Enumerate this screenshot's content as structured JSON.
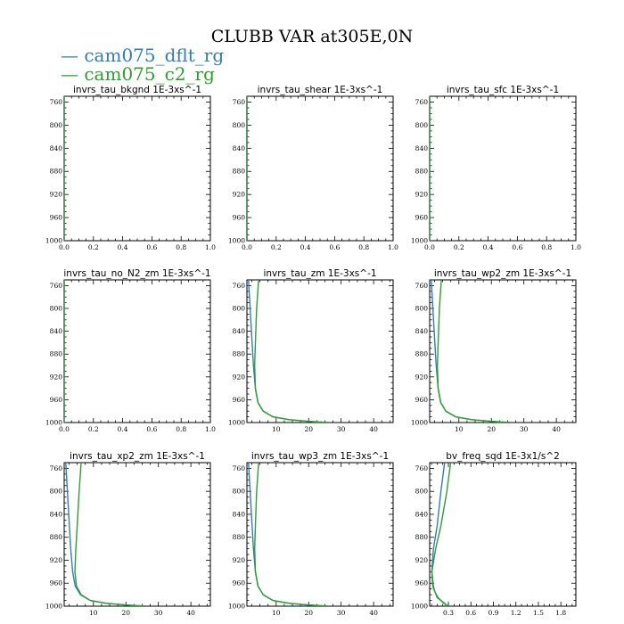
{
  "figure": {
    "title": "CLUBB VAR at305E,0N"
  },
  "legend": [
    {
      "label": "cam075_dflt_rg",
      "color": "#2f7dbf"
    },
    {
      "label": "cam075_c2_rg",
      "color": "#2ca02c"
    }
  ],
  "chart_data": [
    {
      "type": "line",
      "title": "invrs_tau_bkgnd   1E-3xs^-1",
      "xlim": [
        0,
        1
      ],
      "ylim": [
        1000,
        750
      ],
      "xticks": [
        0.0,
        0.2,
        0.4,
        0.6,
        0.8,
        1.0
      ],
      "xtick_labels": [
        "0.0",
        "0.2",
        "0.4",
        "0.6",
        "0.8",
        "1.0"
      ],
      "yticks": [
        760,
        800,
        840,
        880,
        920,
        960,
        1000
      ],
      "series": [
        {
          "name": "cam075_dflt_rg",
          "x": [
            0,
            0
          ],
          "y": [
            750,
            1000
          ]
        },
        {
          "name": "cam075_c2_rg",
          "x": [
            0,
            0
          ],
          "y": [
            750,
            1000
          ]
        }
      ]
    },
    {
      "type": "line",
      "title": "invrs_tau_shear   1E-3xs^-1",
      "xlim": [
        0,
        1
      ],
      "ylim": [
        1000,
        750
      ],
      "xticks": [
        0.0,
        0.2,
        0.4,
        0.6,
        0.8,
        1.0
      ],
      "xtick_labels": [
        "0.0",
        "0.2",
        "0.4",
        "0.6",
        "0.8",
        "1.0"
      ],
      "yticks": [
        760,
        800,
        840,
        880,
        920,
        960,
        1000
      ],
      "series": [
        {
          "name": "cam075_dflt_rg",
          "x": [
            0,
            0
          ],
          "y": [
            750,
            1000
          ]
        },
        {
          "name": "cam075_c2_rg",
          "x": [
            0,
            0
          ],
          "y": [
            750,
            1000
          ]
        }
      ]
    },
    {
      "type": "line",
      "title": "invrs_tau_sfc   1E-3xs^-1",
      "xlim": [
        0,
        1
      ],
      "ylim": [
        1000,
        750
      ],
      "xticks": [
        0.0,
        0.2,
        0.4,
        0.6,
        0.8,
        1.0
      ],
      "xtick_labels": [
        "0.0",
        "0.2",
        "0.4",
        "0.6",
        "0.8",
        "1.0"
      ],
      "yticks": [
        760,
        800,
        840,
        880,
        920,
        960,
        1000
      ],
      "series": [
        {
          "name": "cam075_dflt_rg",
          "x": [
            0,
            0
          ],
          "y": [
            750,
            1000
          ]
        },
        {
          "name": "cam075_c2_rg",
          "x": [
            0,
            0
          ],
          "y": [
            750,
            1000
          ]
        }
      ]
    },
    {
      "type": "line",
      "title": "invrs_tau_no_N2_zm   1E-3xs^-1",
      "xlim": [
        0,
        1
      ],
      "ylim": [
        1000,
        750
      ],
      "xticks": [
        0.0,
        0.2,
        0.4,
        0.6,
        0.8,
        1.0
      ],
      "xtick_labels": [
        "0.0",
        "0.2",
        "0.4",
        "0.6",
        "0.8",
        "1.0"
      ],
      "yticks": [
        760,
        800,
        840,
        880,
        920,
        960,
        1000
      ],
      "series": [
        {
          "name": "cam075_dflt_rg",
          "x": [
            0,
            0
          ],
          "y": [
            750,
            1000
          ]
        },
        {
          "name": "cam075_c2_rg",
          "x": [
            0,
            0
          ],
          "y": [
            750,
            1000
          ]
        }
      ]
    },
    {
      "type": "line",
      "title": "invrs_tau_zm   1E-3xs^-1",
      "xlim": [
        1,
        46
      ],
      "ylim": [
        1000,
        750
      ],
      "xticks": [
        10,
        20,
        30,
        40
      ],
      "xtick_labels": [
        "10",
        "20",
        "30",
        "40"
      ],
      "yticks": [
        760,
        800,
        840,
        880,
        920,
        960,
        1000
      ],
      "series": [
        {
          "name": "cam075_dflt_rg",
          "x": [
            1.5,
            2.0,
            2.6,
            3.0,
            3.6,
            4.4,
            6.0,
            9.0,
            14.0,
            20.0,
            26.0
          ],
          "y": [
            750,
            800,
            860,
            900,
            940,
            965,
            980,
            990,
            995,
            998,
            1000
          ]
        },
        {
          "name": "cam075_c2_rg",
          "x": [
            4.6,
            4.0,
            3.6,
            3.4,
            3.6,
            4.4,
            6.0,
            9.0,
            14.0,
            20.0,
            26.0
          ],
          "y": [
            750,
            800,
            860,
            900,
            940,
            965,
            980,
            990,
            995,
            998,
            1000
          ]
        }
      ]
    },
    {
      "type": "line",
      "title": "invrs_tau_wp2_zm   1E-3xs^-1",
      "xlim": [
        1,
        46
      ],
      "ylim": [
        1000,
        750
      ],
      "xticks": [
        10,
        20,
        30,
        40
      ],
      "xtick_labels": [
        "10",
        "20",
        "30",
        "40"
      ],
      "yticks": [
        760,
        800,
        840,
        880,
        920,
        960,
        1000
      ],
      "series": [
        {
          "name": "cam075_dflt_rg",
          "x": [
            1.5,
            2.0,
            2.6,
            3.0,
            3.6,
            4.4,
            6.0,
            9.0,
            14.0,
            20.0,
            26.0
          ],
          "y": [
            750,
            800,
            860,
            900,
            940,
            965,
            980,
            990,
            995,
            998,
            1000
          ]
        },
        {
          "name": "cam075_c2_rg",
          "x": [
            4.6,
            4.0,
            3.6,
            3.4,
            3.6,
            4.4,
            6.0,
            9.0,
            14.0,
            20.0,
            26.0
          ],
          "y": [
            750,
            800,
            860,
            900,
            940,
            965,
            980,
            990,
            995,
            998,
            1000
          ]
        }
      ]
    },
    {
      "type": "line",
      "title": "invrs_tau_xp2_zm   1E-3xs^-1",
      "xlim": [
        1,
        46
      ],
      "ylim": [
        1000,
        750
      ],
      "xticks": [
        10,
        20,
        30,
        40
      ],
      "xtick_labels": [
        "10",
        "20",
        "30",
        "40"
      ],
      "yticks": [
        760,
        800,
        840,
        880,
        920,
        960,
        1000
      ],
      "series": [
        {
          "name": "cam075_dflt_rg",
          "x": [
            1.5,
            2.0,
            2.6,
            3.0,
            3.6,
            4.4,
            6.0,
            9.0,
            14.0,
            20.0,
            26.0
          ],
          "y": [
            750,
            800,
            860,
            900,
            940,
            965,
            980,
            990,
            995,
            998,
            1000
          ]
        },
        {
          "name": "cam075_c2_rg",
          "x": [
            6.2,
            5.6,
            5.0,
            4.6,
            4.3,
            4.8,
            6.2,
            9.0,
            14.0,
            20.0,
            26.0
          ],
          "y": [
            750,
            800,
            860,
            900,
            940,
            965,
            980,
            990,
            995,
            998,
            1000
          ]
        }
      ]
    },
    {
      "type": "line",
      "title": "invrs_tau_wp3_zm   1E-3xs^-1",
      "xlim": [
        1,
        46
      ],
      "ylim": [
        1000,
        750
      ],
      "xticks": [
        10,
        20,
        30,
        40
      ],
      "xtick_labels": [
        "10",
        "20",
        "30",
        "40"
      ],
      "yticks": [
        760,
        800,
        840,
        880,
        920,
        960,
        1000
      ],
      "series": [
        {
          "name": "cam075_dflt_rg",
          "x": [
            1.5,
            2.0,
            2.6,
            3.0,
            3.6,
            4.4,
            6.0,
            9.0,
            14.0,
            20.0,
            26.0
          ],
          "y": [
            750,
            800,
            860,
            900,
            940,
            965,
            980,
            990,
            995,
            998,
            1000
          ]
        },
        {
          "name": "cam075_c2_rg",
          "x": [
            4.6,
            4.0,
            3.6,
            3.4,
            3.6,
            4.4,
            6.0,
            9.0,
            14.0,
            20.0,
            26.0
          ],
          "y": [
            750,
            800,
            860,
            900,
            940,
            965,
            980,
            990,
            995,
            998,
            1000
          ]
        }
      ]
    },
    {
      "type": "line",
      "title": "bv_freq_sqd   1E-3x1/s^2",
      "xlim": [
        0.05,
        2.0
      ],
      "ylim": [
        1000,
        750
      ],
      "xticks": [
        0.3,
        0.6,
        0.9,
        1.2,
        1.5,
        1.8
      ],
      "xtick_labels": [
        "0.3",
        "0.6",
        "0.9",
        "1.2",
        "1.5",
        "1.8"
      ],
      "yticks": [
        760,
        800,
        840,
        880,
        920,
        960,
        1000
      ],
      "series": [
        {
          "name": "cam075_dflt_rg",
          "x": [
            0.25,
            0.2,
            0.15,
            0.1,
            0.08,
            0.1,
            0.12,
            0.15,
            0.2,
            0.25,
            0.28
          ],
          "y": [
            750,
            800,
            860,
            900,
            940,
            965,
            975,
            985,
            990,
            995,
            1000
          ]
        },
        {
          "name": "cam075_c2_rg",
          "x": [
            0.33,
            0.28,
            0.2,
            0.13,
            0.08,
            0.09,
            0.12,
            0.16,
            0.2,
            0.24,
            0.3
          ],
          "y": [
            750,
            800,
            860,
            900,
            940,
            965,
            975,
            985,
            990,
            995,
            1000
          ]
        }
      ]
    }
  ]
}
